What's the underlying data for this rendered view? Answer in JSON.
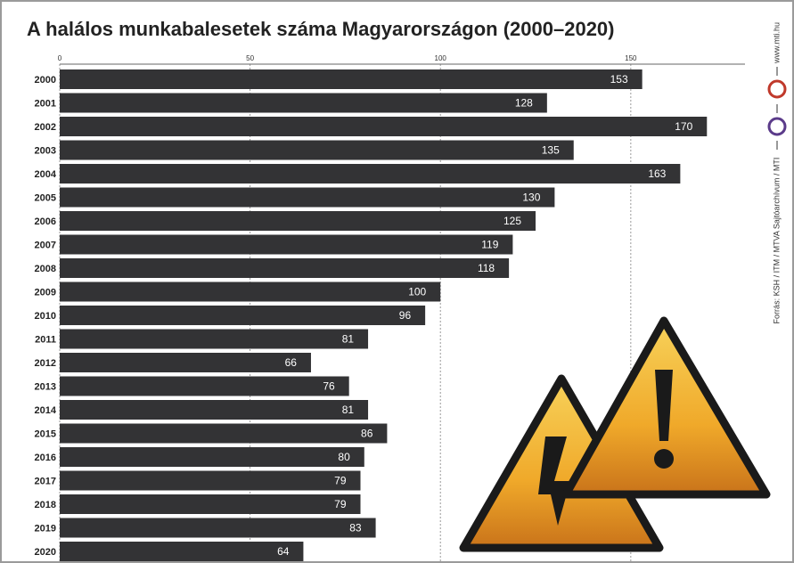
{
  "chart_data": {
    "type": "bar",
    "orientation": "horizontal",
    "title": "A halálos munkabalesetek száma Magyarországon (2000–2020)",
    "source": "Forrás: KSH / ITM / MTVA Sajtóarchívum / MTI",
    "website": "www.mti.hu",
    "categories": [
      "2000",
      "2001",
      "2002",
      "2003",
      "2004",
      "2005",
      "2006",
      "2007",
      "2008",
      "2009",
      "2010",
      "2011",
      "2012",
      "2013",
      "2014",
      "2015",
      "2016",
      "2017",
      "2018",
      "2019",
      "2020"
    ],
    "values": [
      153,
      128,
      170,
      135,
      163,
      130,
      125,
      119,
      118,
      100,
      96,
      81,
      66,
      76,
      81,
      86,
      80,
      79,
      79,
      83,
      64
    ],
    "color": "#333335",
    "xlim": [
      0,
      180
    ],
    "xticks": [
      0,
      50,
      100,
      150
    ],
    "grid": true
  }
}
